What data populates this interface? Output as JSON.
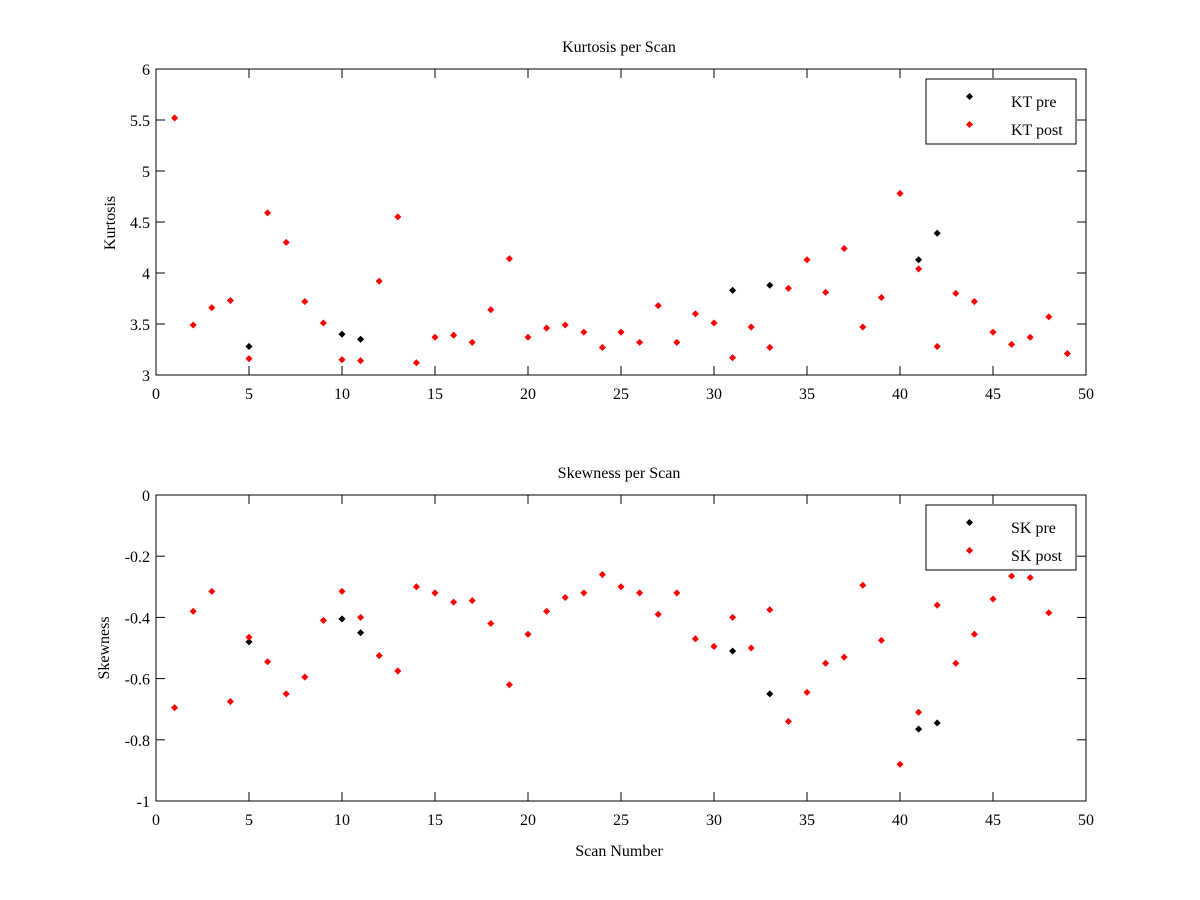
{
  "chart_data": [
    {
      "type": "scatter",
      "title": "Kurtosis per Scan",
      "xlabel": "",
      "ylabel": "Kurtosis",
      "xlim": [
        0,
        50
      ],
      "ylim": [
        3,
        6
      ],
      "x_ticks": [
        "0",
        "5",
        "10",
        "15",
        "20",
        "25",
        "30",
        "35",
        "40",
        "45",
        "50"
      ],
      "y_ticks": [
        "3",
        "3.5",
        "4",
        "4.5",
        "5",
        "5.5",
        "6"
      ],
      "legend_position": "top-right",
      "grid": false,
      "series": [
        {
          "name": "KT pre",
          "color": "#000000",
          "points": [
            [
              5,
              3.28
            ],
            [
              10,
              3.4
            ],
            [
              11,
              3.35
            ],
            [
              31,
              3.83
            ],
            [
              33,
              3.88
            ],
            [
              41,
              4.13
            ],
            [
              42,
              4.39
            ]
          ]
        },
        {
          "name": "KT post",
          "color": "#ff0000",
          "points": [
            [
              1,
              5.52
            ],
            [
              2,
              3.49
            ],
            [
              3,
              3.66
            ],
            [
              4,
              3.73
            ],
            [
              5,
              3.16
            ],
            [
              6,
              4.59
            ],
            [
              7,
              4.3
            ],
            [
              8,
              3.72
            ],
            [
              9,
              3.51
            ],
            [
              10,
              3.15
            ],
            [
              11,
              3.14
            ],
            [
              12,
              3.92
            ],
            [
              13,
              4.55
            ],
            [
              14,
              3.12
            ],
            [
              15,
              3.37
            ],
            [
              16,
              3.39
            ],
            [
              17,
              3.32
            ],
            [
              18,
              3.64
            ],
            [
              19,
              4.14
            ],
            [
              20,
              3.37
            ],
            [
              21,
              3.46
            ],
            [
              22,
              3.49
            ],
            [
              23,
              3.42
            ],
            [
              24,
              3.27
            ],
            [
              25,
              3.42
            ],
            [
              26,
              3.32
            ],
            [
              27,
              3.68
            ],
            [
              28,
              3.32
            ],
            [
              29,
              3.6
            ],
            [
              30,
              3.51
            ],
            [
              31,
              3.17
            ],
            [
              32,
              3.47
            ],
            [
              33,
              3.27
            ],
            [
              34,
              3.85
            ],
            [
              35,
              4.13
            ],
            [
              36,
              3.81
            ],
            [
              37,
              4.24
            ],
            [
              38,
              3.47
            ],
            [
              39,
              3.76
            ],
            [
              40,
              4.78
            ],
            [
              41,
              4.04
            ],
            [
              42,
              3.28
            ],
            [
              43,
              3.8
            ],
            [
              44,
              3.72
            ],
            [
              45,
              3.42
            ],
            [
              46,
              3.3
            ],
            [
              47,
              3.37
            ],
            [
              48,
              3.57
            ],
            [
              49,
              3.21
            ]
          ]
        }
      ]
    },
    {
      "type": "scatter",
      "title": "Skewness per Scan",
      "xlabel": "Scan Number",
      "ylabel": "Skewness",
      "xlim": [
        0,
        50
      ],
      "ylim": [
        -1,
        0
      ],
      "x_ticks": [
        "0",
        "5",
        "10",
        "15",
        "20",
        "25",
        "30",
        "35",
        "40",
        "45",
        "50"
      ],
      "y_ticks": [
        "-1",
        "-0.8",
        "-0.6",
        "-0.4",
        "-0.2",
        "0"
      ],
      "legend_position": "top-right",
      "grid": false,
      "series": [
        {
          "name": "SK pre",
          "color": "#000000",
          "points": [
            [
              5,
              -0.48
            ],
            [
              10,
              -0.405
            ],
            [
              11,
              -0.45
            ],
            [
              31,
              -0.51
            ],
            [
              33,
              -0.65
            ],
            [
              41,
              -0.765
            ],
            [
              42,
              -0.745
            ]
          ]
        },
        {
          "name": "SK post",
          "color": "#ff0000",
          "points": [
            [
              1,
              -0.695
            ],
            [
              2,
              -0.38
            ],
            [
              3,
              -0.315
            ],
            [
              4,
              -0.675
            ],
            [
              5,
              -0.465
            ],
            [
              6,
              -0.545
            ],
            [
              7,
              -0.65
            ],
            [
              8,
              -0.595
            ],
            [
              9,
              -0.41
            ],
            [
              10,
              -0.315
            ],
            [
              11,
              -0.4
            ],
            [
              12,
              -0.525
            ],
            [
              13,
              -0.575
            ],
            [
              14,
              -0.3
            ],
            [
              15,
              -0.32
            ],
            [
              16,
              -0.35
            ],
            [
              17,
              -0.345
            ],
            [
              18,
              -0.42
            ],
            [
              19,
              -0.62
            ],
            [
              20,
              -0.455
            ],
            [
              21,
              -0.38
            ],
            [
              22,
              -0.335
            ],
            [
              23,
              -0.32
            ],
            [
              24,
              -0.26
            ],
            [
              25,
              -0.3
            ],
            [
              26,
              -0.32
            ],
            [
              27,
              -0.39
            ],
            [
              28,
              -0.32
            ],
            [
              29,
              -0.47
            ],
            [
              30,
              -0.495
            ],
            [
              31,
              -0.4
            ],
            [
              32,
              -0.5
            ],
            [
              33,
              -0.375
            ],
            [
              34,
              -0.74
            ],
            [
              35,
              -0.645
            ],
            [
              36,
              -0.55
            ],
            [
              37,
              -0.53
            ],
            [
              38,
              -0.295
            ],
            [
              39,
              -0.475
            ],
            [
              40,
              -0.88
            ],
            [
              41,
              -0.71
            ],
            [
              42,
              -0.36
            ],
            [
              43,
              -0.55
            ],
            [
              44,
              -0.455
            ],
            [
              45,
              -0.34
            ],
            [
              46,
              -0.265
            ],
            [
              47,
              -0.27
            ],
            [
              48,
              -0.385
            ]
          ]
        }
      ]
    }
  ]
}
